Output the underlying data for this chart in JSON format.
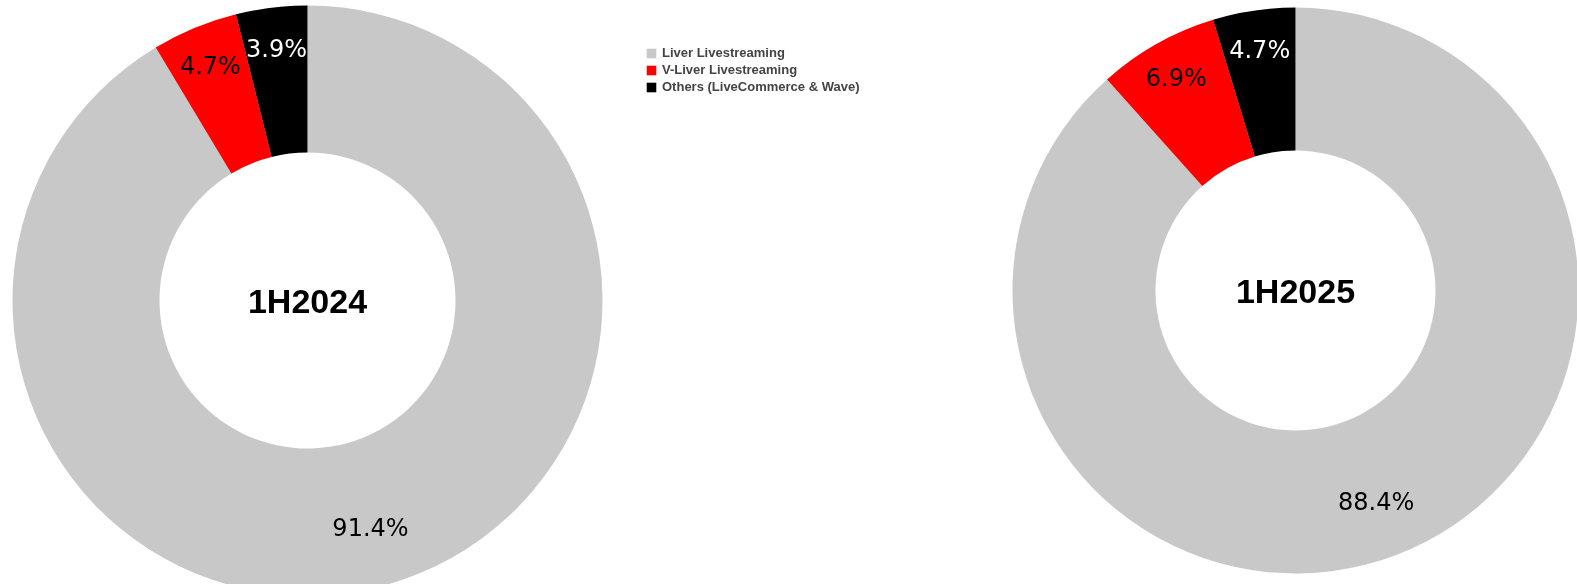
{
  "chart_data": [
    {
      "type": "donut",
      "title": "1H2024",
      "categories": [
        "Liver Livestreaming",
        "V-Liver Livestreaming",
        "Others (LiveCommerce & Wave)"
      ],
      "values": [
        91.4,
        4.7,
        3.9
      ],
      "value_labels": [
        "91.4%",
        "4.7%",
        "3.9%"
      ],
      "colors": [
        "#c8c8c8",
        "#ff0000",
        "#000000"
      ],
      "legend": "top right"
    },
    {
      "type": "donut",
      "title": "1H2025",
      "categories": [
        null,
        null,
        null
      ],
      "values": [
        88.4,
        6.9,
        4.7
      ],
      "value_labels": [
        "88.4%",
        "6.9%",
        "4.7%"
      ],
      "colors": [
        "#c8c8c8",
        "#ff0000",
        "#000000"
      ]
    }
  ]
}
